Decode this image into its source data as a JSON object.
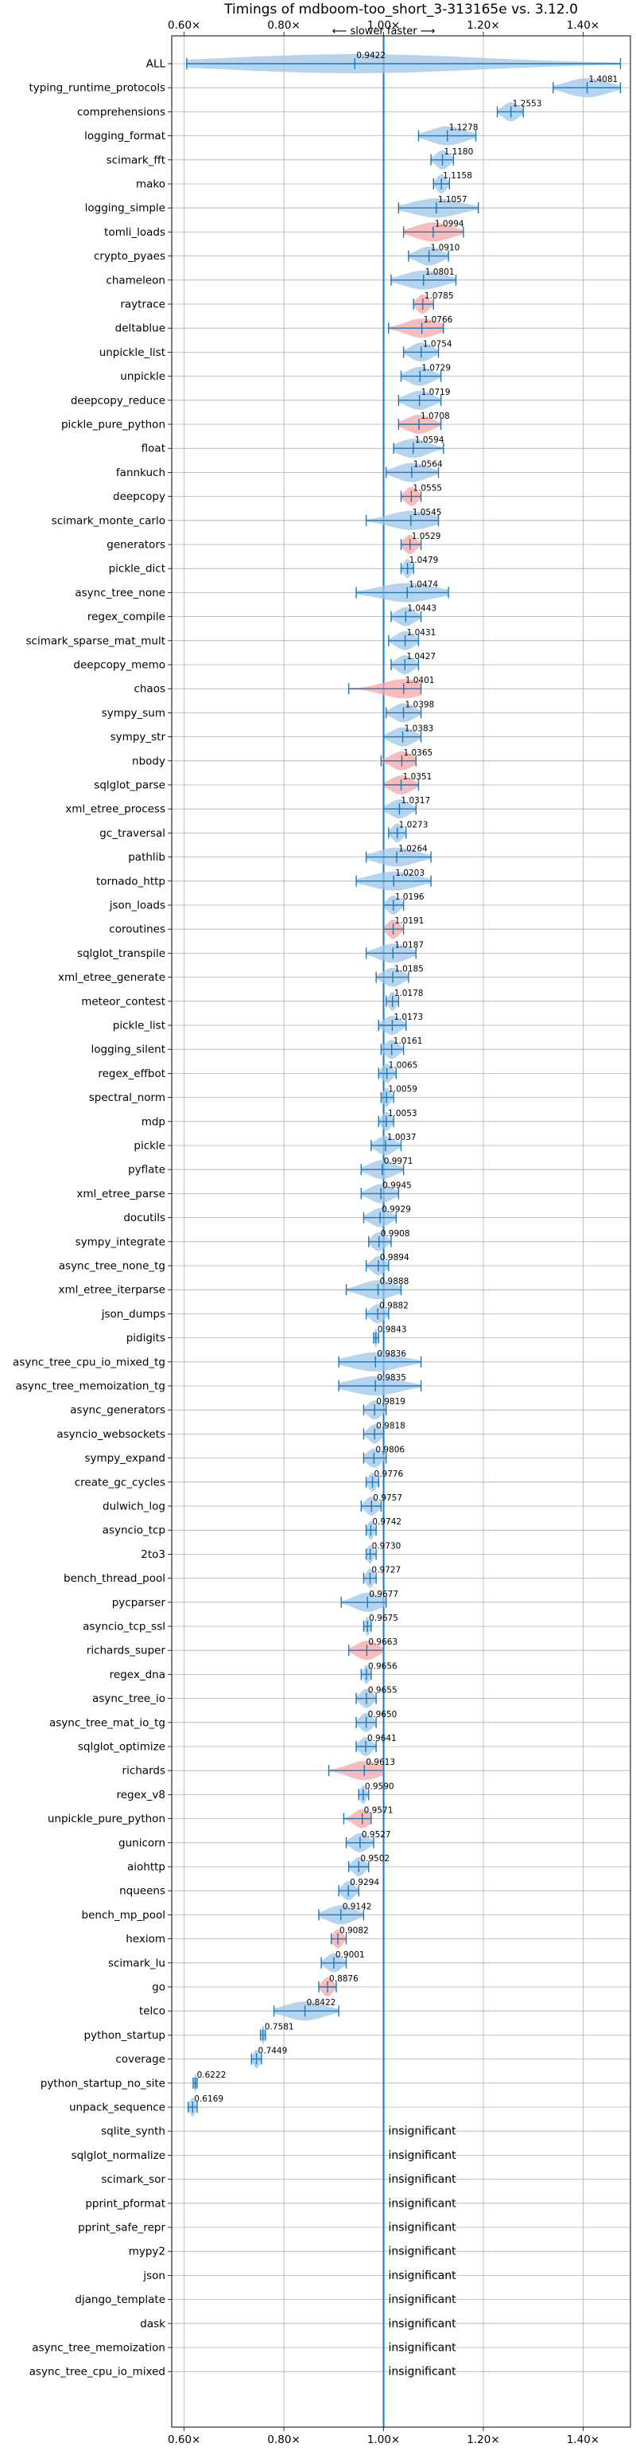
{
  "chart_data": {
    "type": "violin",
    "title": "Timings of mdboom-too_short_3-313165e vs. 3.12.0",
    "direction_label": "⟵ slower   faster ⟶",
    "xlim": [
      0.575,
      1.495
    ],
    "xticks": [
      0.6,
      0.8,
      1.0,
      1.2,
      1.4
    ],
    "xtick_labels": [
      "0.60×",
      "0.80×",
      "1.00×",
      "1.20×",
      "1.40×"
    ],
    "reference_line": 1.0,
    "grid": true,
    "colors": {
      "faster": "#9ec5e8",
      "slower": "#f7a6a6",
      "whisker": "#1f77b4",
      "reference": "#1f77b4"
    },
    "insignificant_label": "insignificant",
    "benchmarks": [
      {
        "name": "ALL",
        "value": 0.9422,
        "low": 0.605,
        "high": 1.475,
        "color": "faster"
      },
      {
        "name": "typing_runtime_protocols",
        "value": 1.4081,
        "low": 1.34,
        "high": 1.475,
        "color": "faster"
      },
      {
        "name": "comprehensions",
        "value": 1.2553,
        "low": 1.228,
        "high": 1.28,
        "color": "faster"
      },
      {
        "name": "logging_format",
        "value": 1.1278,
        "low": 1.07,
        "high": 1.185,
        "color": "faster"
      },
      {
        "name": "scimark_fft",
        "value": 1.118,
        "low": 1.095,
        "high": 1.14,
        "color": "faster"
      },
      {
        "name": "mako",
        "value": 1.1158,
        "low": 1.1,
        "high": 1.132,
        "color": "faster"
      },
      {
        "name": "logging_simple",
        "value": 1.1057,
        "low": 1.03,
        "high": 1.19,
        "color": "faster"
      },
      {
        "name": "tomli_loads",
        "value": 1.0994,
        "low": 1.04,
        "high": 1.16,
        "color": "slower"
      },
      {
        "name": "crypto_pyaes",
        "value": 1.091,
        "low": 1.05,
        "high": 1.13,
        "color": "faster"
      },
      {
        "name": "chameleon",
        "value": 1.0801,
        "low": 1.015,
        "high": 1.145,
        "color": "faster"
      },
      {
        "name": "raytrace",
        "value": 1.0785,
        "low": 1.06,
        "high": 1.1,
        "color": "slower"
      },
      {
        "name": "deltablue",
        "value": 1.0766,
        "low": 1.01,
        "high": 1.12,
        "color": "slower"
      },
      {
        "name": "unpickle_list",
        "value": 1.0754,
        "low": 1.04,
        "high": 1.11,
        "color": "faster"
      },
      {
        "name": "unpickle",
        "value": 1.0729,
        "low": 1.035,
        "high": 1.115,
        "color": "faster"
      },
      {
        "name": "deepcopy_reduce",
        "value": 1.0719,
        "low": 1.03,
        "high": 1.115,
        "color": "faster"
      },
      {
        "name": "pickle_pure_python",
        "value": 1.0708,
        "low": 1.03,
        "high": 1.115,
        "color": "slower"
      },
      {
        "name": "float",
        "value": 1.0594,
        "low": 1.02,
        "high": 1.12,
        "color": "faster"
      },
      {
        "name": "fannkuch",
        "value": 1.0564,
        "low": 1.005,
        "high": 1.11,
        "color": "faster"
      },
      {
        "name": "deepcopy",
        "value": 1.0555,
        "low": 1.035,
        "high": 1.075,
        "color": "slower"
      },
      {
        "name": "scimark_monte_carlo",
        "value": 1.0545,
        "low": 0.965,
        "high": 1.11,
        "color": "faster"
      },
      {
        "name": "generators",
        "value": 1.0529,
        "low": 1.035,
        "high": 1.075,
        "color": "slower"
      },
      {
        "name": "pickle_dict",
        "value": 1.0479,
        "low": 1.035,
        "high": 1.06,
        "color": "faster"
      },
      {
        "name": "async_tree_none",
        "value": 1.0474,
        "low": 0.945,
        "high": 1.13,
        "color": "faster"
      },
      {
        "name": "regex_compile",
        "value": 1.0443,
        "low": 1.015,
        "high": 1.075,
        "color": "faster"
      },
      {
        "name": "scimark_sparse_mat_mult",
        "value": 1.0431,
        "low": 1.01,
        "high": 1.07,
        "color": "faster"
      },
      {
        "name": "deepcopy_memo",
        "value": 1.0427,
        "low": 1.015,
        "high": 1.07,
        "color": "faster"
      },
      {
        "name": "chaos",
        "value": 1.0401,
        "low": 0.93,
        "high": 1.075,
        "color": "slower"
      },
      {
        "name": "sympy_sum",
        "value": 1.0398,
        "low": 1.005,
        "high": 1.075,
        "color": "faster"
      },
      {
        "name": "sympy_str",
        "value": 1.0383,
        "low": 1.0,
        "high": 1.075,
        "color": "faster"
      },
      {
        "name": "nbody",
        "value": 1.0365,
        "low": 0.995,
        "high": 1.065,
        "color": "slower"
      },
      {
        "name": "sqlglot_parse",
        "value": 1.0351,
        "low": 1.0,
        "high": 1.07,
        "color": "slower"
      },
      {
        "name": "xml_etree_process",
        "value": 1.0317,
        "low": 1.0,
        "high": 1.065,
        "color": "faster"
      },
      {
        "name": "gc_traversal",
        "value": 1.0273,
        "low": 1.01,
        "high": 1.045,
        "color": "faster"
      },
      {
        "name": "pathlib",
        "value": 1.0264,
        "low": 0.965,
        "high": 1.095,
        "color": "faster"
      },
      {
        "name": "tornado_http",
        "value": 1.0203,
        "low": 0.945,
        "high": 1.095,
        "color": "faster"
      },
      {
        "name": "json_loads",
        "value": 1.0196,
        "low": 1.0,
        "high": 1.04,
        "color": "faster"
      },
      {
        "name": "coroutines",
        "value": 1.0191,
        "low": 1.0,
        "high": 1.04,
        "color": "slower"
      },
      {
        "name": "sqlglot_transpile",
        "value": 1.0187,
        "low": 0.965,
        "high": 1.065,
        "color": "faster"
      },
      {
        "name": "xml_etree_generate",
        "value": 1.0185,
        "low": 0.985,
        "high": 1.05,
        "color": "faster"
      },
      {
        "name": "meteor_contest",
        "value": 1.0178,
        "low": 1.005,
        "high": 1.03,
        "color": "faster"
      },
      {
        "name": "pickle_list",
        "value": 1.0173,
        "low": 0.99,
        "high": 1.045,
        "color": "faster"
      },
      {
        "name": "logging_silent",
        "value": 1.0161,
        "low": 0.995,
        "high": 1.04,
        "color": "faster"
      },
      {
        "name": "regex_effbot",
        "value": 1.0065,
        "low": 0.99,
        "high": 1.025,
        "color": "faster"
      },
      {
        "name": "spectral_norm",
        "value": 1.0059,
        "low": 0.995,
        "high": 1.02,
        "color": "faster"
      },
      {
        "name": "mdp",
        "value": 1.0053,
        "low": 0.99,
        "high": 1.02,
        "color": "faster"
      },
      {
        "name": "pickle",
        "value": 1.0037,
        "low": 0.975,
        "high": 1.035,
        "color": "faster"
      },
      {
        "name": "pyflate",
        "value": 0.9971,
        "low": 0.955,
        "high": 1.04,
        "color": "faster"
      },
      {
        "name": "xml_etree_parse",
        "value": 0.9945,
        "low": 0.955,
        "high": 1.03,
        "color": "faster"
      },
      {
        "name": "docutils",
        "value": 0.9929,
        "low": 0.96,
        "high": 1.025,
        "color": "faster"
      },
      {
        "name": "sympy_integrate",
        "value": 0.9908,
        "low": 0.97,
        "high": 1.015,
        "color": "faster"
      },
      {
        "name": "async_tree_none_tg",
        "value": 0.9894,
        "low": 0.965,
        "high": 1.01,
        "color": "faster"
      },
      {
        "name": "xml_etree_iterparse",
        "value": 0.9888,
        "low": 0.925,
        "high": 1.035,
        "color": "faster"
      },
      {
        "name": "json_dumps",
        "value": 0.9882,
        "low": 0.965,
        "high": 1.01,
        "color": "faster"
      },
      {
        "name": "pidigits",
        "value": 0.9843,
        "low": 0.98,
        "high": 0.99,
        "color": "faster"
      },
      {
        "name": "async_tree_cpu_io_mixed_tg",
        "value": 0.9836,
        "low": 0.91,
        "high": 1.075,
        "color": "faster"
      },
      {
        "name": "async_tree_memoization_tg",
        "value": 0.9835,
        "low": 0.91,
        "high": 1.075,
        "color": "faster"
      },
      {
        "name": "async_generators",
        "value": 0.9819,
        "low": 0.96,
        "high": 1.005,
        "color": "faster"
      },
      {
        "name": "asyncio_websockets",
        "value": 0.9818,
        "low": 0.96,
        "high": 1.0,
        "color": "faster"
      },
      {
        "name": "sympy_expand",
        "value": 0.9806,
        "low": 0.96,
        "high": 1.005,
        "color": "faster"
      },
      {
        "name": "create_gc_cycles",
        "value": 0.9776,
        "low": 0.965,
        "high": 0.99,
        "color": "faster"
      },
      {
        "name": "dulwich_log",
        "value": 0.9757,
        "low": 0.955,
        "high": 0.995,
        "color": "faster"
      },
      {
        "name": "asyncio_tcp",
        "value": 0.9742,
        "low": 0.965,
        "high": 0.985,
        "color": "faster"
      },
      {
        "name": "2to3",
        "value": 0.973,
        "low": 0.965,
        "high": 0.985,
        "color": "faster"
      },
      {
        "name": "bench_thread_pool",
        "value": 0.9727,
        "low": 0.96,
        "high": 0.985,
        "color": "faster"
      },
      {
        "name": "pycparser",
        "value": 0.9677,
        "low": 0.915,
        "high": 1.005,
        "color": "faster"
      },
      {
        "name": "asyncio_tcp_ssl",
        "value": 0.9675,
        "low": 0.96,
        "high": 0.975,
        "color": "faster"
      },
      {
        "name": "richards_super",
        "value": 0.9663,
        "low": 0.93,
        "high": 1.0,
        "color": "slower"
      },
      {
        "name": "regex_dna",
        "value": 0.9656,
        "low": 0.955,
        "high": 0.975,
        "color": "faster"
      },
      {
        "name": "async_tree_io",
        "value": 0.9655,
        "low": 0.945,
        "high": 0.985,
        "color": "faster"
      },
      {
        "name": "async_tree_mat_io_tg",
        "value": 0.965,
        "low": 0.945,
        "high": 0.985,
        "color": "faster"
      },
      {
        "name": "sqlglot_optimize",
        "value": 0.9641,
        "low": 0.945,
        "high": 0.985,
        "color": "faster"
      },
      {
        "name": "richards",
        "value": 0.9613,
        "low": 0.89,
        "high": 1.0,
        "color": "slower"
      },
      {
        "name": "regex_v8",
        "value": 0.959,
        "low": 0.95,
        "high": 0.97,
        "color": "faster"
      },
      {
        "name": "unpickle_pure_python",
        "value": 0.9571,
        "low": 0.92,
        "high": 0.975,
        "color": "slower"
      },
      {
        "name": "gunicorn",
        "value": 0.9527,
        "low": 0.925,
        "high": 0.98,
        "color": "faster"
      },
      {
        "name": "aiohttp",
        "value": 0.9502,
        "low": 0.93,
        "high": 0.97,
        "color": "faster"
      },
      {
        "name": "nqueens",
        "value": 0.9294,
        "low": 0.91,
        "high": 0.95,
        "color": "faster"
      },
      {
        "name": "bench_mp_pool",
        "value": 0.9142,
        "low": 0.87,
        "high": 0.96,
        "color": "faster"
      },
      {
        "name": "hexiom",
        "value": 0.9082,
        "low": 0.895,
        "high": 0.925,
        "color": "slower"
      },
      {
        "name": "scimark_lu",
        "value": 0.9001,
        "low": 0.875,
        "high": 0.925,
        "color": "faster"
      },
      {
        "name": "go",
        "value": 0.8876,
        "low": 0.87,
        "high": 0.905,
        "color": "slower"
      },
      {
        "name": "telco",
        "value": 0.8422,
        "low": 0.78,
        "high": 0.91,
        "color": "faster"
      },
      {
        "name": "python_startup",
        "value": 0.7581,
        "low": 0.753,
        "high": 0.763,
        "color": "faster"
      },
      {
        "name": "coverage",
        "value": 0.7449,
        "low": 0.735,
        "high": 0.755,
        "color": "faster"
      },
      {
        "name": "python_startup_no_site",
        "value": 0.6222,
        "low": 0.618,
        "high": 0.626,
        "color": "faster"
      },
      {
        "name": "unpack_sequence",
        "value": 0.6169,
        "low": 0.608,
        "high": 0.626,
        "color": "faster"
      },
      {
        "name": "sqlite_synth",
        "insignificant": true
      },
      {
        "name": "sqlglot_normalize",
        "insignificant": true
      },
      {
        "name": "scimark_sor",
        "insignificant": true
      },
      {
        "name": "pprint_pformat",
        "insignificant": true
      },
      {
        "name": "pprint_safe_repr",
        "insignificant": true
      },
      {
        "name": "mypy2",
        "insignificant": true
      },
      {
        "name": "json",
        "insignificant": true
      },
      {
        "name": "django_template",
        "insignificant": true
      },
      {
        "name": "dask",
        "insignificant": true
      },
      {
        "name": "async_tree_memoization",
        "insignificant": true
      },
      {
        "name": "async_tree_cpu_io_mixed",
        "insignificant": true
      }
    ]
  }
}
